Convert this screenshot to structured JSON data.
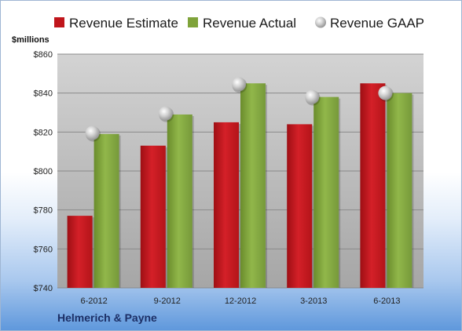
{
  "company": "Helmerich & Payne",
  "chart_data": {
    "type": "bar",
    "unit_label": "$millions",
    "categories": [
      "6-2012",
      "9-2012",
      "12-2012",
      "3-2013",
      "6-2013"
    ],
    "series": [
      {
        "name": "Revenue Estimate",
        "kind": "bar",
        "color": "#c0151b",
        "values": [
          777,
          813,
          825,
          824,
          845
        ]
      },
      {
        "name": "Revenue Actual",
        "kind": "bar",
        "color": "#7fa33a",
        "values": [
          819,
          829,
          845,
          838,
          840
        ]
      },
      {
        "name": "Revenue GAAP",
        "kind": "marker",
        "color": "#c8c8c8",
        "values": [
          819.5,
          829.5,
          844.5,
          838,
          840
        ]
      }
    ],
    "ylim": [
      740,
      860
    ],
    "yticks": [
      740,
      760,
      780,
      800,
      820,
      840,
      860
    ],
    "ytick_labels": [
      "$740",
      "$760",
      "$780",
      "$800",
      "$820",
      "$840",
      "$860"
    ],
    "legend_position": "top",
    "grid": true
  }
}
